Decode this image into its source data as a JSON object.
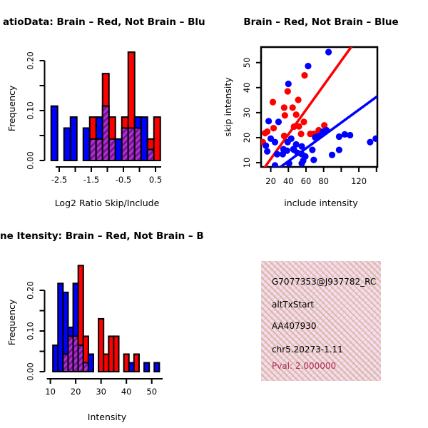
{
  "info_box": {
    "gene_id": "G7077353@J937782_RC",
    "event_type": "altTxStart",
    "accession": "AA407930",
    "locus": "chr5.20273-1.11",
    "pval_text": "Pval: 2.000000",
    "pval_color": "#B03052",
    "bg_color": "#FBD9F0"
  },
  "colors": {
    "brain": "#FF0000",
    "not_brain": "#0000FF",
    "overlap_fill": "#AD33CC",
    "overlap_stripe": "#7A0F9E"
  },
  "chart_data": [
    {
      "type": "bar",
      "subtype": "overlaid-frequency-histogram",
      "title": "atioData: Brain – Red, Not Brain – Blu",
      "xlabel": "Log2 Ratio Skip/Include",
      "ylabel": "Frequency",
      "bin_start": -2.75,
      "bin_width": 0.2,
      "xlim": [
        -2.75,
        0.65
      ],
      "ylim": [
        0,
        0.22
      ],
      "x_ticks": [
        -2.5,
        -2.0,
        -1.5,
        -1.0,
        -0.5,
        0.0,
        0.5
      ],
      "x_tick_labels": [
        "-2.5",
        "",
        "-1.5",
        "",
        "-0.5",
        "",
        "0.5"
      ],
      "y_ticks": [
        0,
        0.05,
        0.1,
        0.15,
        0.2
      ],
      "y_tick_labels": [
        "0.00",
        "",
        "0.10",
        "",
        "0.20"
      ],
      "series": [
        {
          "name": "Not Brain",
          "color": "#0000FF",
          "values": [
            0.109,
            0,
            0.065,
            0.087,
            0,
            0.065,
            0.043,
            0.087,
            0.109,
            0.043,
            0.043,
            0.065,
            0.065,
            0.087,
            0.087,
            0.022,
            0
          ]
        },
        {
          "name": "Brain",
          "color": "#FF0000",
          "values": [
            0,
            0,
            0,
            0,
            0,
            0,
            0.087,
            0.043,
            0.174,
            0.087,
            0,
            0.087,
            0.217,
            0.087,
            0,
            0.043,
            0.087
          ]
        }
      ],
      "overlap": [
        0,
        0,
        0,
        0,
        0,
        0,
        0.043,
        0.043,
        0.109,
        0.043,
        0,
        0.065,
        0.065,
        0.065,
        0,
        0.022,
        0
      ]
    },
    {
      "type": "scatter",
      "title": "Brain – Red, Not Brain – Blue",
      "xlabel": "include intensity",
      "ylabel": "skip intensity",
      "xlim": [
        9,
        141
      ],
      "ylim": [
        8.3,
        56.2
      ],
      "x_ticks": [
        20,
        40,
        60,
        80,
        100,
        120,
        140
      ],
      "x_tick_labels": [
        "20",
        "40",
        "60",
        "80",
        "",
        "120",
        ""
      ],
      "y_ticks": [
        10,
        20,
        30,
        40,
        50
      ],
      "y_tick_labels": [
        "10",
        "20",
        "30",
        "40",
        "50"
      ],
      "series": [
        {
          "name": "Brain",
          "color": "#FF0000",
          "points": [
            [
              58.4,
              44.9
            ],
            [
              39.2,
              38.5
            ],
            [
              22.4,
              34.2
            ],
            [
              51.2,
              35.1
            ],
            [
              44.8,
              32
            ],
            [
              35.2,
              32
            ],
            [
              48.8,
              29.2
            ],
            [
              36,
              28.9
            ],
            [
              57.6,
              26.3
            ],
            [
              52,
              24.5
            ],
            [
              46.4,
              24.4
            ],
            [
              54.4,
              21.5
            ],
            [
              64.8,
              21.5
            ],
            [
              68.8,
              21.5
            ],
            [
              74.4,
              23
            ],
            [
              80.8,
              24.9
            ],
            [
              23.2,
              23.8
            ],
            [
              13.6,
              21.8
            ],
            [
              11,
              18.2
            ],
            [
              16,
              22.4
            ],
            [
              35.2,
              20.7
            ]
          ]
        },
        {
          "name": "Not Brain",
          "color": "#0000FF",
          "points": [
            [
              85.6,
              54.2
            ],
            [
              62.4,
              48.6
            ],
            [
              40,
              41.5
            ],
            [
              17.6,
              26.6
            ],
            [
              28.8,
              26.3
            ],
            [
              14.4,
              16.8
            ],
            [
              20,
              19.6
            ],
            [
              24.8,
              18.2
            ],
            [
              16,
              14.5
            ],
            [
              27.2,
              13.4
            ],
            [
              33.6,
              13.4
            ],
            [
              34.4,
              15.4
            ],
            [
              38.4,
              14.8
            ],
            [
              39.2,
              18.2
            ],
            [
              43.2,
              19.6
            ],
            [
              45.6,
              15.4
            ],
            [
              46.4,
              15.1
            ],
            [
              48.8,
              17.3
            ],
            [
              50.4,
              13.9
            ],
            [
              55.2,
              13.4
            ],
            [
              55.2,
              16.5
            ],
            [
              59.2,
              12.5
            ],
            [
              56.8,
              10.8
            ],
            [
              40.8,
              9.7
            ],
            [
              24.8,
              8.9
            ],
            [
              55.2,
              9.7
            ],
            [
              68.8,
              11.1
            ],
            [
              67.2,
              15.1
            ],
            [
              70.4,
              20.1
            ],
            [
              74.4,
              20.7
            ],
            [
              79.2,
              22.4
            ],
            [
              83.2,
              23
            ],
            [
              89.6,
              13.1
            ],
            [
              97.6,
              15.1
            ],
            [
              97.6,
              20.4
            ],
            [
              104,
              21.3
            ],
            [
              110,
              21
            ],
            [
              132.8,
              18.2
            ],
            [
              139.2,
              19.6
            ]
          ]
        }
      ],
      "lines": [
        {
          "name": "brain-fit",
          "color": "#FF0000",
          "slope": 0.49,
          "intercept": 1.7
        },
        {
          "name": "not-brain-fit",
          "color": "#0000FF",
          "slope": 0.257,
          "intercept": 0.3
        }
      ]
    },
    {
      "type": "bar",
      "subtype": "overlaid-frequency-histogram",
      "title": "ne Itensity: Brain – Red, Not Brain – B",
      "xlabel": "Intensity",
      "ylabel": "Frequency",
      "bin_start": 11,
      "bin_width": 2,
      "xlim": [
        10,
        53
      ],
      "ylim": [
        0,
        0.27
      ],
      "x_ticks": [
        10,
        20,
        30,
        40,
        50
      ],
      "x_tick_labels": [
        "10",
        "20",
        "30",
        "40",
        "50"
      ],
      "y_ticks": [
        0,
        0.05,
        0.1,
        0.15,
        0.2
      ],
      "y_tick_labels": [
        "0.00",
        "",
        "0.10",
        "",
        "0.20"
      ],
      "series": [
        {
          "name": "Not Brain",
          "color": "#0000FF",
          "values": [
            0.065,
            0.217,
            0.195,
            0.109,
            0.217,
            0.065,
            0.022,
            0.043,
            0,
            0,
            0,
            0,
            0,
            0,
            0,
            0.022,
            0,
            0,
            0.022,
            0,
            0.022
          ]
        },
        {
          "name": "Brain",
          "color": "#FF0000",
          "values": [
            0,
            0,
            0.043,
            0.087,
            0.087,
            0.261,
            0.087,
            0,
            0,
            0.13,
            0.043,
            0.087,
            0.087,
            0,
            0.043,
            0,
            0.043,
            0,
            0,
            0,
            0
          ]
        }
      ],
      "overlap": [
        0,
        0,
        0.043,
        0.087,
        0.087,
        0.065,
        0.022,
        0,
        0,
        0,
        0,
        0,
        0,
        0,
        0,
        0,
        0,
        0,
        0,
        0,
        0
      ]
    }
  ]
}
